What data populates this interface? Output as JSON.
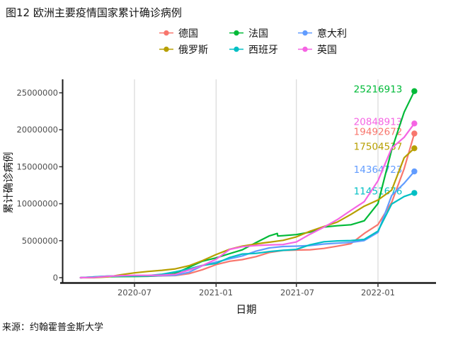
{
  "chart_data": {
    "type": "line",
    "title": "图12 欧洲主要疫情国家累计确诊病例",
    "xlabel": "日期",
    "ylabel": "累计确诊病例",
    "source": "来源：约翰霍普金斯大学",
    "grid": "vertical-major-only",
    "legend_position": "top-center",
    "x_range": [
      "2020-03-01",
      "2022-03-24"
    ],
    "ylim": [
      0,
      26500000
    ],
    "x_ticks": [
      {
        "label": "2020-07",
        "date": "2020-07-01"
      },
      {
        "label": "2021-01",
        "date": "2021-01-01"
      },
      {
        "label": "2021-07",
        "date": "2021-07-01"
      },
      {
        "label": "2022-01",
        "date": "2022-01-01"
      }
    ],
    "y_ticks": [
      {
        "label": "0",
        "value": 0
      },
      {
        "label": "5000000",
        "value": 5000000
      },
      {
        "label": "10000000",
        "value": 10000000
      },
      {
        "label": "15000000",
        "value": 15000000
      },
      {
        "label": "20000000",
        "value": 20000000
      },
      {
        "label": "25000000",
        "value": 25000000
      }
    ],
    "series": [
      {
        "id": "germany",
        "name": "德国",
        "color": "#F8766D",
        "end_label": "19492672",
        "points": [
          [
            "2020-03-01",
            1000
          ],
          [
            "2020-04-01",
            77000
          ],
          [
            "2020-05-01",
            164000
          ],
          [
            "2020-06-01",
            183000
          ],
          [
            "2020-07-01",
            196000
          ],
          [
            "2020-08-01",
            210000
          ],
          [
            "2020-09-01",
            245000
          ],
          [
            "2020-10-01",
            292000
          ],
          [
            "2020-11-01",
            545000
          ],
          [
            "2020-12-01",
            1070000
          ],
          [
            "2021-01-01",
            1762000
          ],
          [
            "2021-02-01",
            2225000
          ],
          [
            "2021-03-01",
            2447000
          ],
          [
            "2021-04-01",
            2843000
          ],
          [
            "2021-05-01",
            3405000
          ],
          [
            "2021-06-01",
            3690000
          ],
          [
            "2021-07-01",
            3733000
          ],
          [
            "2021-08-01",
            3770000
          ],
          [
            "2021-09-01",
            3960000
          ],
          [
            "2021-10-01",
            4249000
          ],
          [
            "2021-11-01",
            4602000
          ],
          [
            "2021-12-01",
            5977000
          ],
          [
            "2022-01-01",
            7176000
          ],
          [
            "2022-02-01",
            10186000
          ],
          [
            "2022-03-01",
            14745000
          ],
          [
            "2022-03-24",
            19492672
          ]
        ]
      },
      {
        "id": "france",
        "name": "法国",
        "color": "#00BA38",
        "end_label": "25216913",
        "points": [
          [
            "2020-03-01",
            130
          ],
          [
            "2020-04-01",
            52900
          ],
          [
            "2020-05-01",
            129000
          ],
          [
            "2020-06-01",
            152000
          ],
          [
            "2020-07-01",
            165000
          ],
          [
            "2020-08-01",
            187000
          ],
          [
            "2020-09-01",
            281000
          ],
          [
            "2020-10-01",
            577000
          ],
          [
            "2020-11-01",
            1414000
          ],
          [
            "2020-12-01",
            2224000
          ],
          [
            "2021-01-01",
            2677000
          ],
          [
            "2021-02-01",
            3252000
          ],
          [
            "2021-03-01",
            3760000
          ],
          [
            "2021-04-01",
            4742000
          ],
          [
            "2021-05-01",
            5652000
          ],
          [
            "2021-05-19",
            5981000
          ],
          [
            "2021-05-20",
            5635000
          ],
          [
            "2021-06-01",
            5677000
          ],
          [
            "2021-07-01",
            5820000
          ],
          [
            "2021-08-01",
            6155000
          ],
          [
            "2021-09-01",
            6852000
          ],
          [
            "2021-10-01",
            7025000
          ],
          [
            "2021-11-01",
            7153000
          ],
          [
            "2021-12-01",
            7696000
          ],
          [
            "2022-01-01",
            10030000
          ],
          [
            "2022-02-01",
            17311000
          ],
          [
            "2022-03-01",
            22384000
          ],
          [
            "2022-03-24",
            25216913
          ]
        ]
      },
      {
        "id": "italy",
        "name": "意大利",
        "color": "#619CFF",
        "end_label": "14364723",
        "points": [
          [
            "2020-03-01",
            1700
          ],
          [
            "2020-04-01",
            105800
          ],
          [
            "2020-05-01",
            205500
          ],
          [
            "2020-06-01",
            233000
          ],
          [
            "2020-07-01",
            240800
          ],
          [
            "2020-08-01",
            247500
          ],
          [
            "2020-09-01",
            269200
          ],
          [
            "2020-10-01",
            314900
          ],
          [
            "2020-11-01",
            731600
          ],
          [
            "2020-12-01",
            1620900
          ],
          [
            "2021-01-01",
            2107200
          ],
          [
            "2021-02-01",
            2553000
          ],
          [
            "2021-03-01",
            2938000
          ],
          [
            "2021-04-01",
            3585000
          ],
          [
            "2021-05-01",
            4022000
          ],
          [
            "2021-06-01",
            4217000
          ],
          [
            "2021-07-01",
            4259000
          ],
          [
            "2021-08-01",
            4350000
          ],
          [
            "2021-09-01",
            4546000
          ],
          [
            "2021-10-01",
            4668000
          ],
          [
            "2021-11-01",
            4771000
          ],
          [
            "2021-12-01",
            5016000
          ],
          [
            "2022-01-01",
            6125000
          ],
          [
            "2022-02-01",
            11117000
          ],
          [
            "2022-03-01",
            12764000
          ],
          [
            "2022-03-24",
            14364723
          ]
        ]
      },
      {
        "id": "russia",
        "name": "俄罗斯",
        "color": "#B79F00",
        "end_label": "17504537",
        "points": [
          [
            "2020-03-01",
            2
          ],
          [
            "2020-04-01",
            2800
          ],
          [
            "2020-05-01",
            106500
          ],
          [
            "2020-06-01",
            405800
          ],
          [
            "2020-07-01",
            647800
          ],
          [
            "2020-08-01",
            839000
          ],
          [
            "2020-09-01",
            997000
          ],
          [
            "2020-10-01",
            1185000
          ],
          [
            "2020-11-01",
            1618000
          ],
          [
            "2020-12-01",
            2302000
          ],
          [
            "2021-01-01",
            3127000
          ],
          [
            "2021-02-01",
            3850000
          ],
          [
            "2021-03-01",
            4258000
          ],
          [
            "2021-04-01",
            4563000
          ],
          [
            "2021-05-01",
            4800000
          ],
          [
            "2021-06-01",
            5044000
          ],
          [
            "2021-07-01",
            5514000
          ],
          [
            "2021-08-01",
            6288000
          ],
          [
            "2021-09-01",
            6918000
          ],
          [
            "2021-10-01",
            7512000
          ],
          [
            "2021-11-01",
            8554000
          ],
          [
            "2021-12-01",
            9669000
          ],
          [
            "2022-01-01",
            10499000
          ],
          [
            "2022-02-01",
            11842000
          ],
          [
            "2022-03-01",
            16221000
          ],
          [
            "2022-03-24",
            17504537
          ]
        ]
      },
      {
        "id": "spain",
        "name": "西班牙",
        "color": "#00BFC4",
        "end_label": "11451676",
        "points": [
          [
            "2020-03-01",
            84
          ],
          [
            "2020-04-01",
            95900
          ],
          [
            "2020-05-01",
            213400
          ],
          [
            "2020-06-01",
            239600
          ],
          [
            "2020-07-01",
            249300
          ],
          [
            "2020-08-01",
            288500
          ],
          [
            "2020-09-01",
            462900
          ],
          [
            "2020-10-01",
            789900
          ],
          [
            "2020-11-01",
            1185000
          ],
          [
            "2020-12-01",
            1656000
          ],
          [
            "2021-01-01",
            1928000
          ],
          [
            "2021-02-01",
            2743000
          ],
          [
            "2021-03-01",
            3204000
          ],
          [
            "2021-04-01",
            3284000
          ],
          [
            "2021-05-01",
            3524000
          ],
          [
            "2021-06-01",
            3697000
          ],
          [
            "2021-07-01",
            3822000
          ],
          [
            "2021-08-01",
            4447000
          ],
          [
            "2021-09-01",
            4855000
          ],
          [
            "2021-10-01",
            4968000
          ],
          [
            "2021-11-01",
            5021000
          ],
          [
            "2021-12-01",
            5174000
          ],
          [
            "2022-01-01",
            6294000
          ],
          [
            "2022-02-01",
            9961000
          ],
          [
            "2022-03-01",
            10977000
          ],
          [
            "2022-03-24",
            11451676
          ]
        ]
      },
      {
        "id": "uk",
        "name": "英国",
        "color": "#F564E3",
        "end_label": "20848913",
        "points": [
          [
            "2020-03-01",
            40
          ],
          [
            "2020-04-01",
            34200
          ],
          [
            "2020-05-01",
            178700
          ],
          [
            "2020-06-01",
            277000
          ],
          [
            "2020-07-01",
            313500
          ],
          [
            "2020-08-01",
            317000
          ],
          [
            "2020-09-01",
            337000
          ],
          [
            "2020-10-01",
            453000
          ],
          [
            "2020-11-01",
            1034000
          ],
          [
            "2020-12-01",
            1629000
          ],
          [
            "2021-01-01",
            2489000
          ],
          [
            "2021-02-01",
            3835000
          ],
          [
            "2021-03-01",
            4182000
          ],
          [
            "2021-04-01",
            4345000
          ],
          [
            "2021-05-01",
            4421000
          ],
          [
            "2021-06-01",
            4487000
          ],
          [
            "2021-07-01",
            4830000
          ],
          [
            "2021-08-01",
            5880000
          ],
          [
            "2021-09-01",
            6825000
          ],
          [
            "2021-10-01",
            7841000
          ],
          [
            "2021-11-01",
            9097000
          ],
          [
            "2021-12-01",
            10276000
          ],
          [
            "2022-01-01",
            13100000
          ],
          [
            "2022-02-01",
            17515000
          ],
          [
            "2022-03-01",
            18981000
          ],
          [
            "2022-03-24",
            20848913
          ]
        ]
      }
    ]
  }
}
